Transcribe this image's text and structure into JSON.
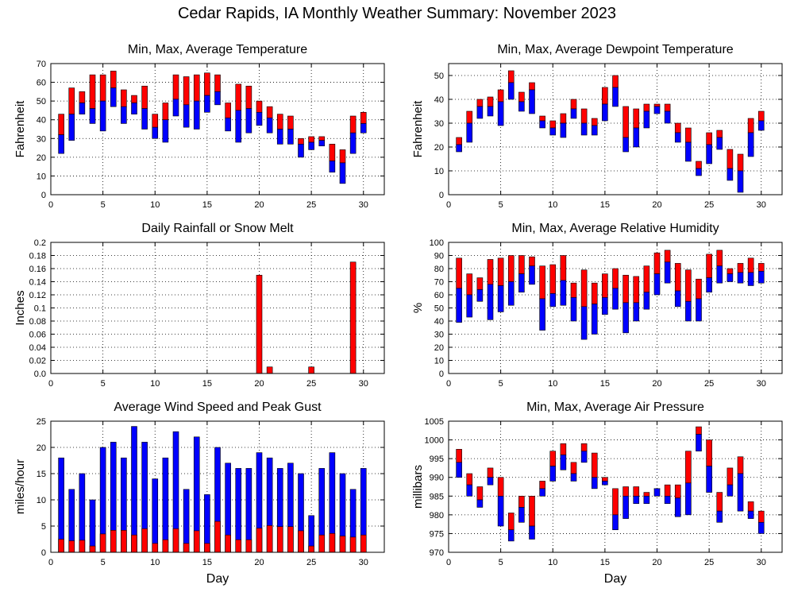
{
  "page_title": "Cedar Rapids, IA Monthly Weather Summary: November 2023",
  "colors": {
    "upper": "#ff0000",
    "lower": "#0000ff",
    "gust": "#0000ff",
    "avg_wind": "#ff0000",
    "rain": "#ff0000"
  },
  "chart_data": [
    {
      "id": "temp",
      "type": "bar",
      "title": "Min, Max, Average Temperature",
      "ylabel": "Fahrenheit",
      "xlabel": "",
      "xlim": [
        0,
        32
      ],
      "ylim": [
        0,
        70
      ],
      "xticks": [
        0,
        5,
        10,
        15,
        20,
        25,
        30
      ],
      "yticks": [
        0,
        10,
        20,
        30,
        40,
        50,
        60,
        70
      ],
      "grid": true,
      "style": "range",
      "days": [
        1,
        2,
        3,
        4,
        5,
        6,
        7,
        8,
        9,
        10,
        11,
        12,
        13,
        14,
        15,
        16,
        17,
        18,
        19,
        20,
        21,
        22,
        23,
        24,
        25,
        26,
        27,
        28,
        29,
        30
      ],
      "min": [
        22,
        29,
        43,
        38,
        34,
        47,
        38,
        43,
        35,
        30,
        28,
        42,
        36,
        35,
        44,
        48,
        34,
        28,
        33,
        37,
        33,
        27,
        27,
        20,
        24,
        26,
        12,
        6,
        22,
        33
      ],
      "avg": [
        32,
        43,
        49,
        46,
        50,
        57,
        47,
        49,
        46,
        36,
        40,
        51,
        48,
        50,
        53,
        55,
        41,
        45,
        46,
        44,
        41,
        35,
        35,
        27,
        28,
        29,
        18,
        17,
        33,
        38
      ],
      "max": [
        43,
        57,
        55,
        64,
        64,
        66,
        56,
        53,
        58,
        43,
        49,
        64,
        63,
        64,
        65,
        64,
        49,
        59,
        58,
        50,
        47,
        43,
        42,
        30,
        31,
        31,
        27,
        24,
        42,
        44
      ]
    },
    {
      "id": "dew",
      "type": "bar",
      "title": "Min, Max, Average Dewpoint Temperature",
      "ylabel": "Fahrenheit",
      "xlabel": "",
      "xlim": [
        0,
        32
      ],
      "ylim": [
        0,
        55
      ],
      "xticks": [
        0,
        5,
        10,
        15,
        20,
        25,
        30
      ],
      "yticks": [
        0,
        10,
        20,
        30,
        40,
        50
      ],
      "grid": true,
      "style": "range",
      "days": [
        1,
        2,
        3,
        4,
        5,
        6,
        7,
        8,
        9,
        10,
        11,
        12,
        13,
        14,
        15,
        16,
        17,
        18,
        19,
        20,
        21,
        22,
        23,
        24,
        25,
        26,
        27,
        28,
        29,
        30
      ],
      "min": [
        18,
        22,
        32,
        33,
        29,
        40,
        35,
        34,
        28,
        25,
        24,
        32,
        25,
        25,
        31,
        37,
        18,
        20,
        28,
        34,
        30,
        22,
        14,
        8,
        13,
        19,
        6,
        1,
        16,
        27
      ],
      "avg": [
        21,
        30,
        37,
        37,
        39,
        47,
        39,
        44,
        31,
        28,
        30,
        36,
        30,
        29,
        38,
        45,
        24,
        28,
        35,
        37,
        35,
        26,
        22,
        11,
        21,
        24,
        11,
        10,
        26,
        31
      ],
      "max": [
        24,
        35,
        40,
        41,
        44,
        52,
        43,
        47,
        33,
        31,
        34,
        40,
        36,
        32,
        45,
        50,
        37,
        36,
        38,
        38,
        38,
        30,
        28,
        14,
        26,
        27,
        19,
        17,
        32,
        35
      ]
    },
    {
      "id": "rain",
      "type": "bar",
      "title": "Daily Rainfall or Snow Melt",
      "ylabel": "Inches",
      "xlabel": "",
      "xlim": [
        0,
        32
      ],
      "ylim": [
        0,
        0.2
      ],
      "xticks": [
        0,
        5,
        10,
        15,
        20,
        25,
        30
      ],
      "yticks": [
        0,
        0.02,
        0.04,
        0.06,
        0.08,
        0.1,
        0.12,
        0.14,
        0.16,
        0.18,
        0.2
      ],
      "ytick_labels": [
        "0.0",
        "0.02",
        "0.04",
        "0.06",
        "0.08",
        "0.1",
        "0.12",
        "0.14",
        "0.16",
        "0.18",
        "0.2"
      ],
      "grid": true,
      "style": "single",
      "days": [
        20,
        21,
        25,
        29
      ],
      "values": [
        0.15,
        0.01,
        0.01,
        0.17
      ]
    },
    {
      "id": "rh",
      "type": "bar",
      "title": "Min, Max, Average Relative Humidity",
      "ylabel": "%",
      "xlabel": "",
      "xlim": [
        0,
        32
      ],
      "ylim": [
        0,
        100
      ],
      "xticks": [
        0,
        5,
        10,
        15,
        20,
        25,
        30
      ],
      "yticks": [
        0,
        10,
        20,
        30,
        40,
        50,
        60,
        70,
        80,
        90,
        100
      ],
      "grid": true,
      "style": "range",
      "days": [
        1,
        2,
        3,
        4,
        5,
        6,
        7,
        8,
        9,
        10,
        11,
        12,
        13,
        14,
        15,
        16,
        17,
        18,
        19,
        20,
        21,
        22,
        23,
        24,
        25,
        26,
        27,
        28,
        29,
        30
      ],
      "min": [
        39,
        43,
        55,
        41,
        47,
        52,
        62,
        68,
        33,
        51,
        52,
        40,
        26,
        30,
        45,
        49,
        31,
        40,
        49,
        60,
        69,
        51,
        40,
        40,
        62,
        69,
        70,
        69,
        67,
        69
      ],
      "avg": [
        65,
        60,
        64,
        68,
        67,
        70,
        76,
        82,
        57,
        61,
        71,
        58,
        51,
        53,
        58,
        65,
        54,
        54,
        62,
        76,
        85,
        63,
        55,
        57,
        73,
        82,
        76,
        77,
        77,
        78
      ],
      "max": [
        88,
        76,
        73,
        87,
        88,
        90,
        90,
        89,
        82,
        83,
        90,
        69,
        79,
        69,
        76,
        80,
        75,
        74,
        82,
        92,
        94,
        84,
        79,
        72,
        91,
        94,
        80,
        84,
        88,
        84
      ]
    },
    {
      "id": "wind",
      "type": "bar",
      "title": "Average Wind Speed and Peak Gust",
      "ylabel": "miles/hour",
      "xlabel": "Day",
      "xlim": [
        0,
        32
      ],
      "ylim": [
        0,
        25
      ],
      "xticks": [
        0,
        5,
        10,
        15,
        20,
        25,
        30
      ],
      "yticks": [
        0,
        5,
        10,
        15,
        20,
        25
      ],
      "grid": true,
      "style": "overlay",
      "days": [
        1,
        2,
        3,
        4,
        5,
        6,
        7,
        8,
        9,
        10,
        11,
        12,
        13,
        14,
        15,
        16,
        17,
        18,
        19,
        20,
        21,
        22,
        23,
        24,
        25,
        26,
        27,
        28,
        29,
        30
      ],
      "gust": [
        18,
        12,
        15,
        10,
        20,
        21,
        18,
        24,
        21,
        14,
        18,
        23,
        12,
        22,
        11,
        20,
        17,
        16,
        16,
        19,
        18,
        16,
        17,
        15,
        7,
        16,
        19,
        15,
        12,
        16
      ],
      "avg": [
        2.5,
        2.2,
        2.3,
        1.2,
        3.5,
        4.2,
        4.2,
        3.3,
        4.5,
        1.7,
        2.4,
        4.5,
        1.7,
        4.1,
        1.7,
        5.9,
        3.3,
        2.4,
        2.4,
        4.6,
        5.1,
        4.9,
        4.9,
        4.1,
        1.2,
        3.3,
        3.6,
        3.1,
        2.9,
        3.3
      ]
    },
    {
      "id": "pres",
      "type": "bar",
      "title": "Min, Max, Average Air Pressure",
      "ylabel": "millibars",
      "xlabel": "Day",
      "xlim": [
        0,
        32
      ],
      "ylim": [
        970,
        1005
      ],
      "xticks": [
        0,
        5,
        10,
        15,
        20,
        25,
        30
      ],
      "yticks": [
        970,
        975,
        980,
        985,
        990,
        995,
        1000,
        1005
      ],
      "grid": true,
      "style": "range",
      "days": [
        1,
        2,
        3,
        4,
        5,
        6,
        7,
        8,
        9,
        10,
        11,
        12,
        13,
        14,
        15,
        16,
        17,
        18,
        19,
        20,
        21,
        22,
        23,
        24,
        25,
        26,
        27,
        28,
        29,
        30
      ],
      "min": [
        990,
        985,
        982,
        988,
        977,
        973,
        978,
        973.5,
        985,
        989,
        992,
        989,
        994,
        987,
        988,
        976,
        979,
        983,
        983,
        985,
        983,
        979.5,
        980,
        997,
        986,
        978,
        985,
        981,
        979,
        975
      ],
      "avg": [
        994,
        988,
        984,
        990,
        985,
        976,
        982,
        977,
        987,
        993,
        996,
        991,
        997,
        990,
        989,
        980,
        985,
        985,
        985,
        987,
        985,
        984.5,
        988.5,
        1001.5,
        993,
        981,
        988,
        991,
        981,
        978
      ],
      "max": [
        997.5,
        991,
        987.5,
        992.5,
        990,
        980.5,
        985,
        985,
        989,
        997,
        999,
        994,
        999,
        996.5,
        990,
        987,
        987.5,
        987.5,
        986,
        987,
        988,
        988,
        997,
        1003.5,
        1000,
        986,
        992.5,
        995.5,
        983.5,
        981
      ]
    }
  ]
}
